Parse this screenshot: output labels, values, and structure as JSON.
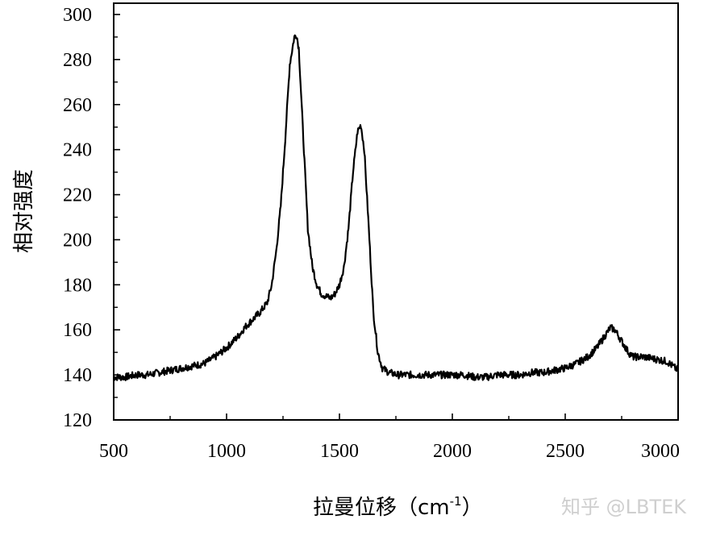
{
  "chart_data": {
    "type": "line",
    "title": "",
    "xlabel": "拉曼位移（cm",
    "xlabel_sup": "-1",
    "xlabel_end": "）",
    "ylabel": "相对强度",
    "xlim": [
      500,
      3000
    ],
    "ylim": [
      120,
      305
    ],
    "x_ticks": [
      500,
      1000,
      1500,
      2000,
      2500,
      3000
    ],
    "x_tick_labels": [
      "500",
      "1000",
      "1500",
      "2000",
      "2500",
      "3000"
    ],
    "y_ticks": [
      120,
      140,
      160,
      180,
      200,
      220,
      240,
      260,
      280,
      300
    ],
    "y_tick_labels": [
      "120",
      "140",
      "160",
      "180",
      "200",
      "220",
      "240",
      "260",
      "280",
      "300"
    ],
    "grid": false,
    "series": [
      {
        "color": "#000000",
        "x": [
          500,
          550,
          600,
          650,
          700,
          750,
          800,
          850,
          900,
          950,
          1000,
          1050,
          1080,
          1100,
          1120,
          1150,
          1180,
          1200,
          1220,
          1240,
          1260,
          1280,
          1300,
          1310,
          1320,
          1340,
          1360,
          1380,
          1400,
          1420,
          1440,
          1460,
          1480,
          1500,
          1520,
          1540,
          1560,
          1580,
          1595,
          1610,
          1630,
          1650,
          1670,
          1690,
          1720,
          1760,
          1800,
          1850,
          1900,
          1950,
          2000,
          2050,
          2100,
          2150,
          2200,
          2250,
          2300,
          2350,
          2400,
          2450,
          2500,
          2550,
          2600,
          2620,
          2640,
          2660,
          2680,
          2700,
          2720,
          2750,
          2780,
          2800,
          2850,
          2900,
          2950,
          3000
        ],
        "y": [
          139,
          139,
          140,
          140,
          141,
          142,
          143,
          144,
          145,
          148,
          152,
          157,
          161,
          163,
          165,
          168,
          172,
          180,
          195,
          215,
          245,
          278,
          290,
          291,
          285,
          245,
          205,
          188,
          180,
          176,
          175,
          174,
          176,
          180,
          188,
          205,
          230,
          248,
          251,
          240,
          205,
          168,
          150,
          143,
          141,
          140,
          140,
          140,
          140,
          140,
          140,
          140,
          139,
          139,
          140,
          140,
          140,
          141,
          141,
          142,
          143,
          145,
          148,
          150,
          152,
          155,
          158,
          161,
          160,
          155,
          150,
          148,
          148,
          147,
          146,
          142
        ]
      }
    ]
  },
  "watermark": {
    "text": "知乎 @LBTEK"
  }
}
